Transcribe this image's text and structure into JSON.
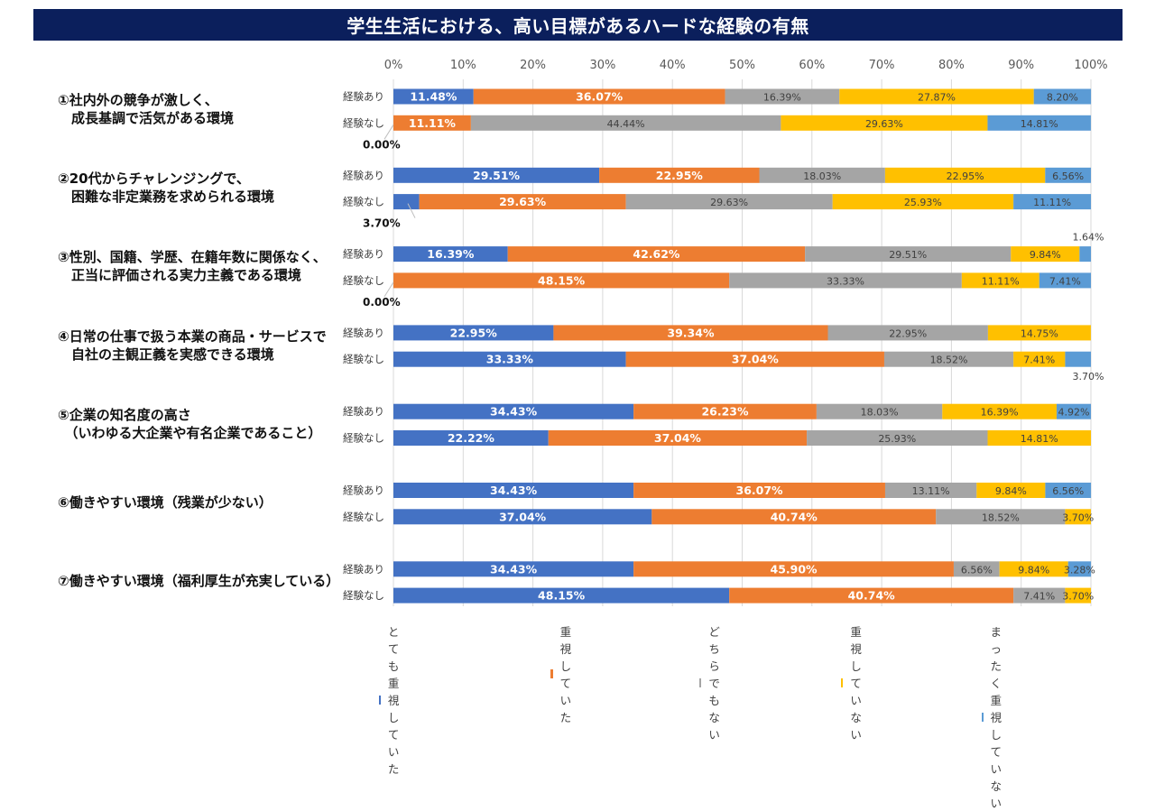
{
  "title": "学生生活における、高い目標があるハードな経験の有無",
  "chart_data": {
    "type": "bar",
    "orientation": "horizontal-stacked-100",
    "title": "学生生活における、高い目標があるハードな経験の有無",
    "xlabel": "",
    "ylabel": "",
    "xlim": [
      0,
      100
    ],
    "x_ticks": [
      "0%",
      "10%",
      "20%",
      "30%",
      "40%",
      "50%",
      "60%",
      "70%",
      "80%",
      "90%",
      "100%"
    ],
    "grid": true,
    "legend_position": "bottom",
    "series_names": [
      "とても重視していた",
      "重視していた",
      "どちらでもない",
      "重視していない",
      "まったく重視していない"
    ],
    "series_colors": [
      "#4472c4",
      "#ed7d31",
      "#a5a5a5",
      "#ffc000",
      "#5b9bd5"
    ],
    "groups": [
      {
        "label": "①社内外の競争が激しく、\n　成長基調で活気がある環境",
        "rows": [
          {
            "label": "経験あり",
            "values": [
              11.48,
              36.07,
              16.39,
              27.87,
              8.2
            ]
          },
          {
            "label": "経験なし",
            "values": [
              0.0,
              11.11,
              44.44,
              29.63,
              14.81
            ]
          }
        ]
      },
      {
        "label": "②20代からチャレンジングで、\n　困難な非定業務を求められる環境",
        "rows": [
          {
            "label": "経験あり",
            "values": [
              29.51,
              22.95,
              18.03,
              22.95,
              6.56
            ]
          },
          {
            "label": "経験なし",
            "values": [
              3.7,
              29.63,
              29.63,
              25.93,
              11.11
            ]
          }
        ]
      },
      {
        "label": "③性別、国籍、学歴、在籍年数に関係なく、\n　正当に評価される実力主義である環境",
        "rows": [
          {
            "label": "経験あり",
            "values": [
              16.39,
              42.62,
              29.51,
              9.84,
              1.64
            ]
          },
          {
            "label": "経験なし",
            "values": [
              0.0,
              48.15,
              33.33,
              11.11,
              7.41
            ]
          }
        ]
      },
      {
        "label": "④日常の仕事で扱う本業の商品・サービスで\n　自社の主観正義を実感できる環境",
        "rows": [
          {
            "label": "経験あり",
            "values": [
              22.95,
              39.34,
              22.95,
              14.75,
              0
            ]
          },
          {
            "label": "経験なし",
            "values": [
              33.33,
              37.04,
              18.52,
              7.41,
              3.7
            ]
          }
        ]
      },
      {
        "label": "⑤企業の知名度の高さ\n　（いわゆる大企業や有名企業であること）",
        "rows": [
          {
            "label": "経験あり",
            "values": [
              34.43,
              26.23,
              18.03,
              16.39,
              4.92
            ]
          },
          {
            "label": "経験なし",
            "values": [
              22.22,
              37.04,
              25.93,
              14.81,
              0
            ]
          }
        ]
      },
      {
        "label": "⑥働きやすい環境（残業が少ない）",
        "rows": [
          {
            "label": "経験あり",
            "values": [
              34.43,
              36.07,
              13.11,
              9.84,
              6.56
            ]
          },
          {
            "label": "経験なし",
            "values": [
              37.04,
              40.74,
              18.52,
              3.7,
              0
            ]
          }
        ]
      },
      {
        "label": "⑦働きやすい環境（福利厚生が充実している）",
        "rows": [
          {
            "label": "経験あり",
            "values": [
              34.43,
              45.9,
              6.56,
              9.84,
              3.28
            ]
          },
          {
            "label": "経験なし",
            "values": [
              48.15,
              40.74,
              7.41,
              3.7,
              0
            ]
          }
        ]
      }
    ],
    "outside_labels": [
      {
        "group": 0,
        "row": 1,
        "series": 0,
        "text": "0.00%"
      },
      {
        "group": 1,
        "row": 1,
        "series": 0,
        "text": "3.70%"
      },
      {
        "group": 2,
        "row": 0,
        "series": 4,
        "text": "1.64%"
      },
      {
        "group": 2,
        "row": 1,
        "series": 0,
        "text": "0.00%"
      },
      {
        "group": 3,
        "row": 1,
        "series": 4,
        "text": "3.70%"
      }
    ]
  }
}
